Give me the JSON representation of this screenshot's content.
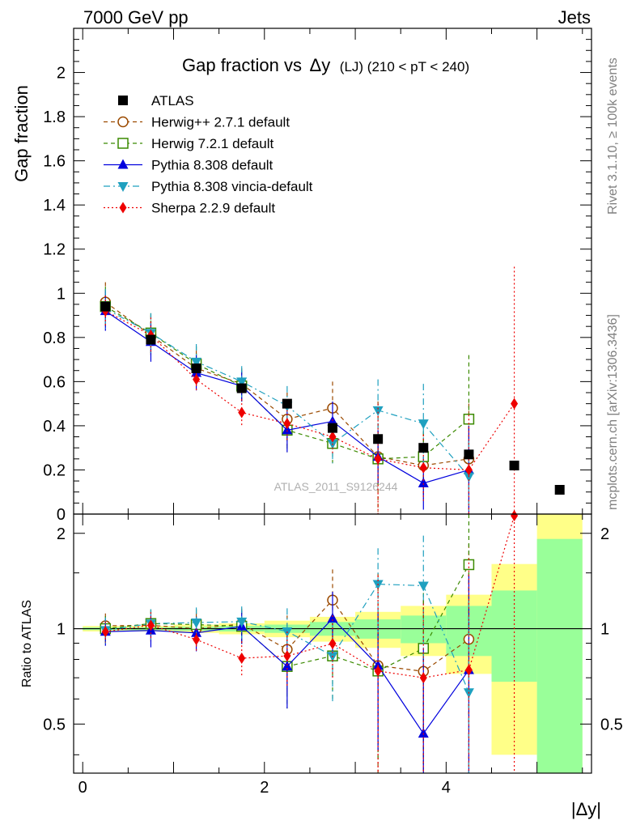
{
  "header": {
    "left": "7000 GeV pp",
    "right": "Jets"
  },
  "side_text": {
    "rivet": "Rivet 3.1.10, ≥ 100k events",
    "mcplots": "mcplots.cern.ch [arXiv:1306.3436]"
  },
  "chart_data": {
    "type": "scatter",
    "title_main": "Gap fraction vs",
    "title_dy": "Δy",
    "title_suffix": "(LJ) (210 < pT < 240)",
    "analysis_id": "ATLAS_2011_S9126244",
    "xlabel": "|Δy|",
    "ylabel_top": "Gap fraction",
    "ylabel_bottom": "Ratio to ATLAS",
    "xlim": [
      -0.1,
      5.6
    ],
    "ylim_top": [
      0,
      2.2
    ],
    "ylim_bottom": [
      0.35,
      2.3
    ],
    "x_ticks": [
      0,
      2,
      4
    ],
    "y_ticks_top": [
      "0",
      "0.2",
      "0.4",
      "0.6",
      "0.8",
      "1",
      "1.2",
      "1.4",
      "1.6",
      "1.8",
      "2"
    ],
    "y_ticks_bottom": [
      "0.5",
      "1",
      "2"
    ],
    "x": [
      0.25,
      0.75,
      1.25,
      1.75,
      2.25,
      2.75,
      3.25,
      3.75,
      4.25,
      4.75,
      5.25
    ],
    "data_band": {
      "stat_rel": [
        0.01,
        0.01,
        0.015,
        0.02,
        0.03,
        0.05,
        0.07,
        0.1,
        0.18,
        0.32,
        0.92
      ],
      "total_rel": [
        0.02,
        0.02,
        0.03,
        0.04,
        0.06,
        0.09,
        0.13,
        0.18,
        0.28,
        0.6,
        1.3
      ]
    },
    "series": [
      {
        "name": "ATLAS",
        "color": "#000000",
        "marker": "square",
        "dash": "",
        "y": [
          0.94,
          0.79,
          0.66,
          0.57,
          0.5,
          0.39,
          0.34,
          0.3,
          0.27,
          0.22,
          0.11
        ],
        "err": [
          0,
          0,
          0,
          0,
          0,
          0,
          0,
          0,
          0,
          0,
          0
        ]
      },
      {
        "name": "Herwig++ 2.7.1 default",
        "color": "#9b4a00",
        "marker": "circle-open",
        "dash": "5,4",
        "y": [
          0.96,
          0.81,
          0.66,
          0.59,
          0.43,
          0.48,
          0.26,
          0.22,
          0.25,
          null,
          null
        ],
        "err": [
          0.09,
          0.09,
          0.08,
          0.07,
          0.12,
          0.12,
          0.25,
          0.15,
          0.25,
          null,
          null
        ]
      },
      {
        "name": "Herwig 7.2.1 default",
        "color": "#3b8a00",
        "marker": "square-open",
        "dash": "5,4",
        "y": [
          0.94,
          0.82,
          0.68,
          0.58,
          0.38,
          0.32,
          0.25,
          0.26,
          0.43,
          null,
          null
        ],
        "err": [
          0.09,
          0.09,
          0.08,
          0.07,
          0.1,
          0.09,
          0.12,
          0.15,
          0.29,
          null,
          null
        ]
      },
      {
        "name": "Pythia 8.308 default",
        "color": "#0000dd",
        "marker": "triangle-up",
        "dash": "",
        "y": [
          0.92,
          0.78,
          0.64,
          0.58,
          0.38,
          0.42,
          0.26,
          0.14,
          0.2,
          null,
          null
        ],
        "err": [
          0.09,
          0.09,
          0.08,
          0.07,
          0.1,
          0.09,
          0.12,
          0.12,
          0.2,
          null,
          null
        ]
      },
      {
        "name": "Pythia 8.308 vincia-default",
        "color": "#1fa0bf",
        "marker": "triangle-down",
        "dash": "8,4,2,4",
        "y": [
          0.93,
          0.82,
          0.69,
          0.6,
          0.49,
          0.32,
          0.47,
          0.41,
          0.17,
          null,
          null
        ],
        "err": [
          0.09,
          0.09,
          0.08,
          0.07,
          0.09,
          0.09,
          0.14,
          0.18,
          0.16,
          null,
          null
        ]
      },
      {
        "name": "Sherpa 2.2.9 default",
        "color": "#ee0000",
        "marker": "diamond",
        "dash": "2,3",
        "y": [
          0.92,
          0.81,
          0.61,
          0.46,
          0.41,
          0.35,
          0.25,
          0.21,
          0.2,
          0.5,
          null
        ],
        "err": [
          0.07,
          0.08,
          0.05,
          0.06,
          0.08,
          0.08,
          0.25,
          0.15,
          0.25,
          0.62,
          null
        ]
      }
    ]
  }
}
